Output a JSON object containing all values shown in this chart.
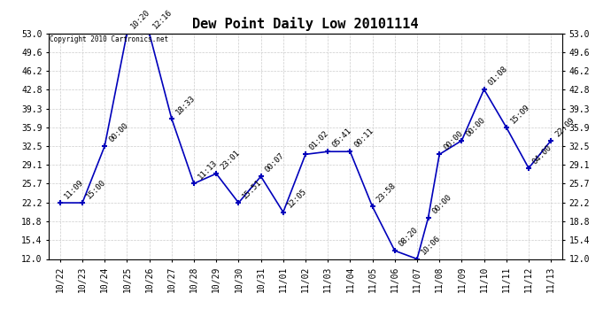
{
  "title": "Dew Point Daily Low 20101114",
  "copyright": "Copyright 2010 Cartronics.net",
  "x_tick_labels": [
    "10/22",
    "10/23",
    "10/24",
    "10/25",
    "10/26",
    "10/27",
    "10/28",
    "10/29",
    "10/30",
    "10/31",
    "11/01",
    "11/02",
    "11/03",
    "11/04",
    "11/05",
    "11/06",
    "11/07",
    "11/08",
    "11/09",
    "11/10",
    "11/11",
    "11/12",
    "11/13"
  ],
  "x_data": [
    0,
    1,
    2,
    3,
    4,
    5,
    6,
    7,
    8,
    9,
    10,
    11,
    12,
    13,
    14,
    15,
    16,
    16.5,
    17,
    18,
    19,
    20,
    21,
    22
  ],
  "y_values": [
    22.2,
    22.2,
    32.5,
    53.0,
    53.0,
    37.5,
    25.7,
    27.5,
    22.2,
    27.0,
    20.5,
    31.0,
    31.5,
    31.5,
    21.5,
    13.5,
    12.0,
    19.5,
    31.0,
    33.5,
    42.8,
    35.9,
    28.5,
    33.5
  ],
  "point_labels": [
    "11:09",
    "15:00",
    "00:00",
    "10:20",
    "12:16",
    "18:33",
    "11:13",
    "23:01",
    "15:51",
    "00:07",
    "12:05",
    "01:02",
    "05:41",
    "00:11",
    "23:58",
    "08:20",
    "10:06",
    "00:00",
    "00:00",
    "00:00",
    "01:08",
    "15:09",
    "04:00",
    "22:09"
  ],
  "ylim": [
    12.0,
    53.0
  ],
  "yticks": [
    12.0,
    15.4,
    18.8,
    22.2,
    25.7,
    29.1,
    32.5,
    35.9,
    39.3,
    42.8,
    46.2,
    49.6,
    53.0
  ],
  "line_color": "#0000bb",
  "marker_color": "#0000bb",
  "bg_color": "#ffffff",
  "grid_color": "#cccccc",
  "title_fontsize": 11,
  "label_fontsize": 7,
  "point_label_fontsize": 6.5
}
